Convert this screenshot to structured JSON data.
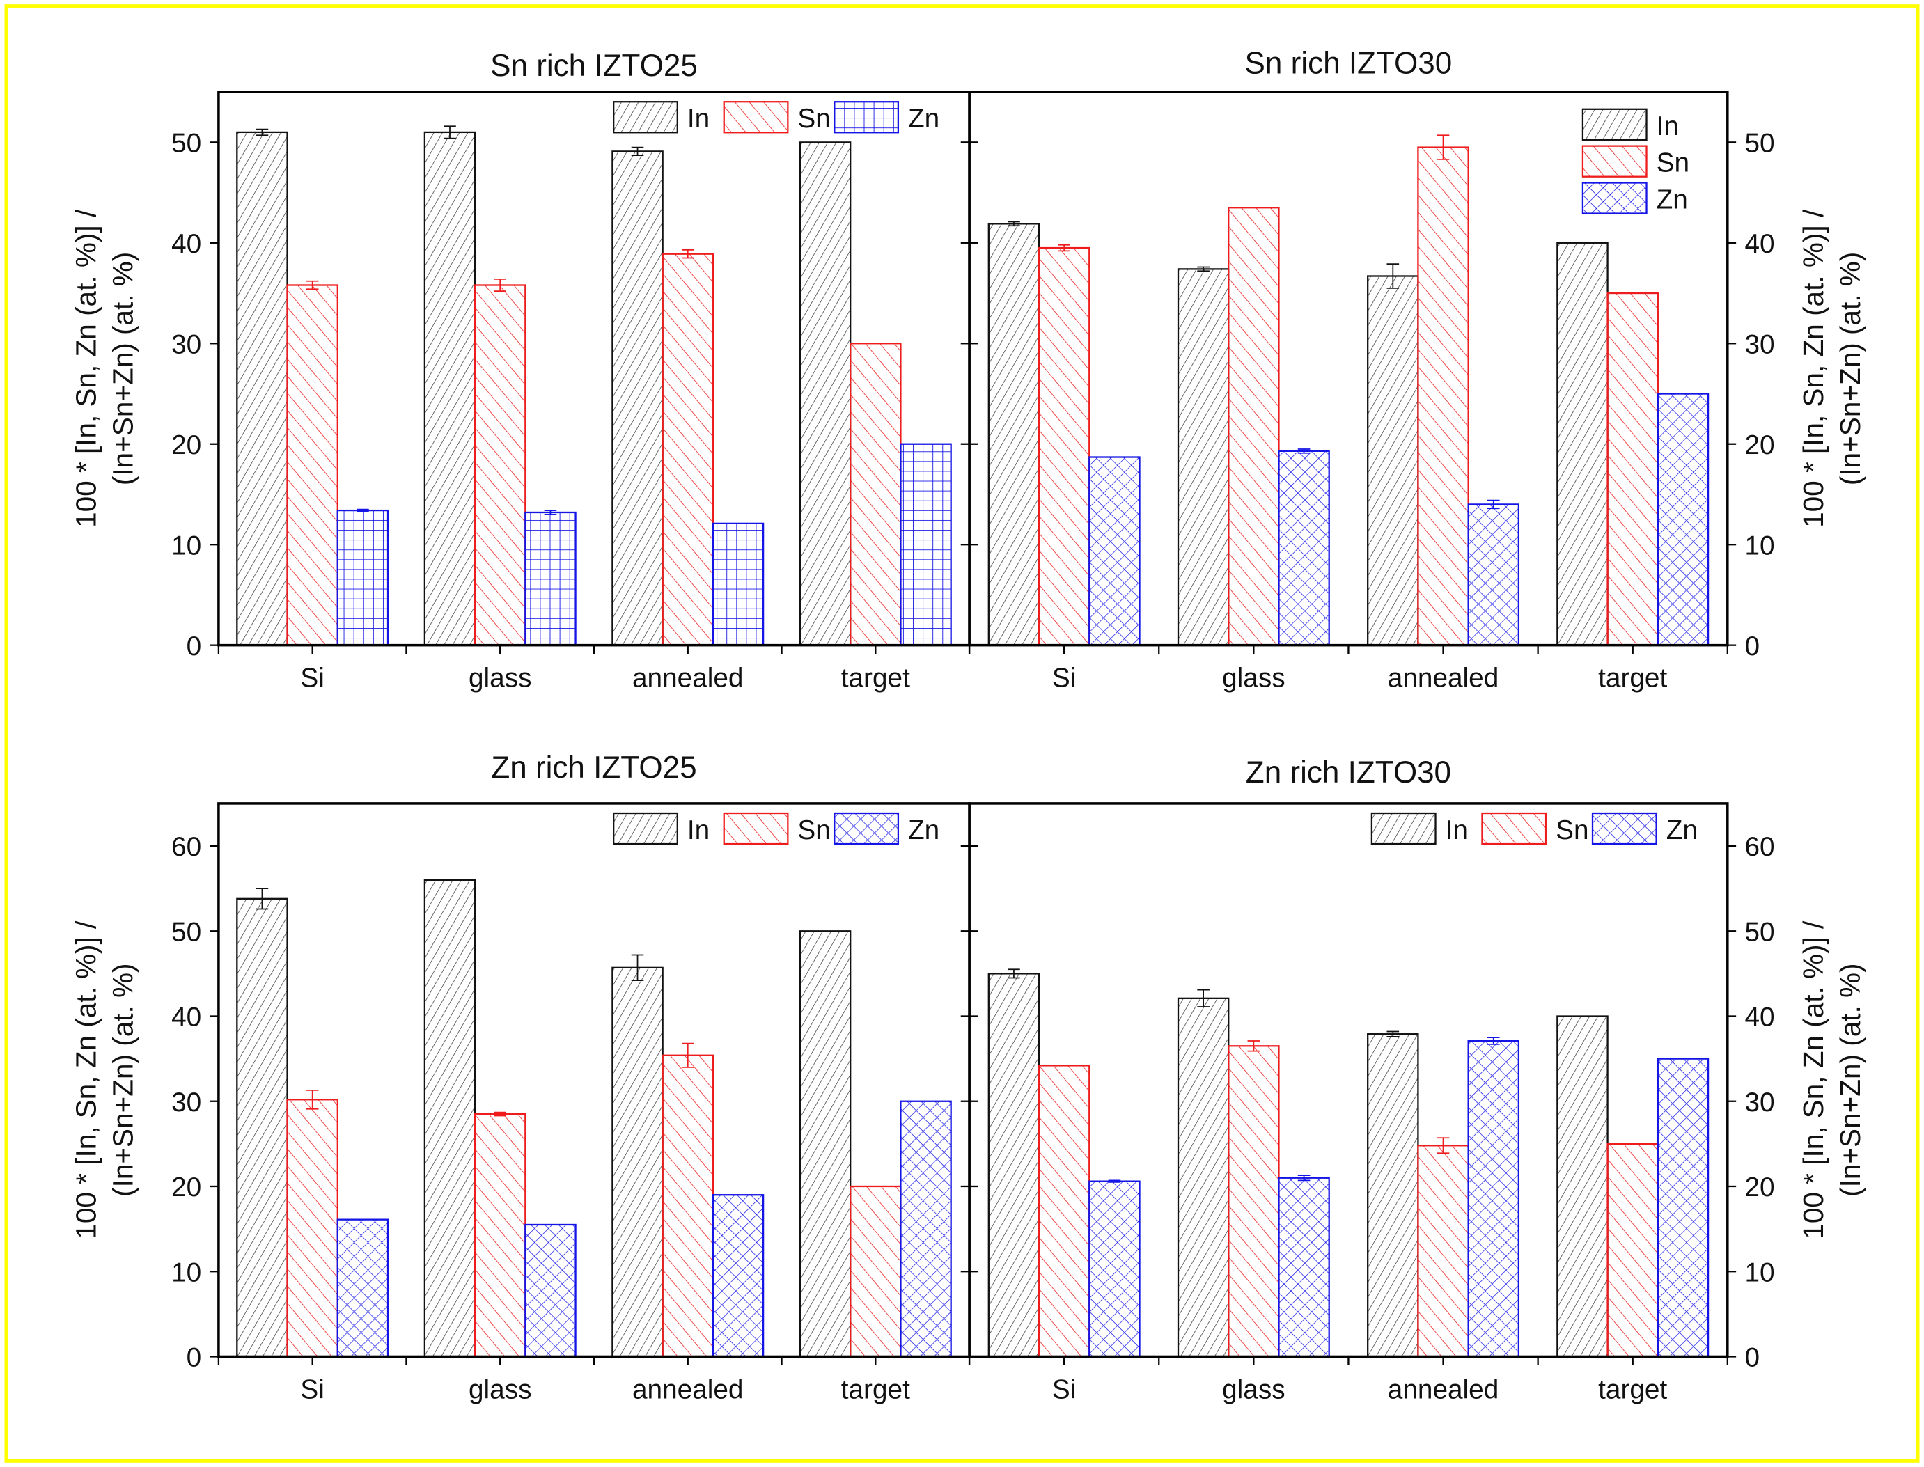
{
  "chart_data": [
    {
      "type": "bar",
      "title": "Sn rich IZTO25",
      "categories": [
        "Si",
        "glass",
        "annealed",
        "target"
      ],
      "ylabel": "100 * [In, Sn, Zn (at. %)] / (In+Sn+Zn) (at. %)",
      "ylim": [
        0,
        55
      ],
      "yticks": [
        0,
        10,
        20,
        30,
        40,
        50
      ],
      "yaxis_side": "left",
      "legend_placement": "top-right",
      "legend_layout": "row",
      "series": [
        {
          "name": "In",
          "values": [
            51.0,
            51.0,
            49.1,
            50.0
          ],
          "errors": [
            0.3,
            0.6,
            0.4,
            0
          ]
        },
        {
          "name": "Sn",
          "values": [
            35.8,
            35.8,
            38.9,
            30.0
          ],
          "errors": [
            0.4,
            0.6,
            0.4,
            0
          ]
        },
        {
          "name": "Zn",
          "values": [
            13.4,
            13.2,
            12.1,
            20.0
          ],
          "errors": [
            0.1,
            0.2,
            0,
            0
          ]
        }
      ]
    },
    {
      "type": "bar",
      "title": "Sn rich IZTO30",
      "categories": [
        "Si",
        "glass",
        "annealed",
        "target"
      ],
      "ylabel": "100 * [In, Sn, Zn (at. %)] / (In+Sn+Zn) (at. %)",
      "ylim": [
        0,
        55
      ],
      "yticks": [
        0,
        10,
        20,
        30,
        40,
        50
      ],
      "yaxis_side": "right",
      "legend_placement": "top-right",
      "legend_layout": "column",
      "series": [
        {
          "name": "In",
          "values": [
            41.9,
            37.4,
            36.7,
            40.0
          ],
          "errors": [
            0.2,
            0.2,
            1.2,
            0
          ]
        },
        {
          "name": "Sn",
          "values": [
            39.5,
            43.5,
            49.5,
            35.0
          ],
          "errors": [
            0.3,
            0,
            1.2,
            0
          ]
        },
        {
          "name": "Zn",
          "values": [
            18.7,
            19.3,
            14.0,
            25.0
          ],
          "errors": [
            0,
            0.2,
            0.4,
            0
          ]
        }
      ]
    },
    {
      "type": "bar",
      "title": "Zn rich IZTO25",
      "categories": [
        "Si",
        "glass",
        "annealed",
        "target"
      ],
      "ylabel": "100 * [In, Sn, Zn (at. %)] / (In+Sn+Zn) (at. %)",
      "ylim": [
        0,
        65
      ],
      "yticks": [
        0,
        10,
        20,
        30,
        40,
        50,
        60
      ],
      "yaxis_side": "left",
      "legend_placement": "top-right",
      "legend_layout": "row",
      "series": [
        {
          "name": "In",
          "values": [
            53.8,
            56.0,
            45.7,
            50.0
          ],
          "errors": [
            1.2,
            0,
            1.5,
            0
          ]
        },
        {
          "name": "Sn",
          "values": [
            30.2,
            28.5,
            35.4,
            20.0
          ],
          "errors": [
            1.1,
            0.2,
            1.4,
            0
          ]
        },
        {
          "name": "Zn",
          "values": [
            16.1,
            15.5,
            19.0,
            30.0
          ],
          "errors": [
            0,
            0,
            0,
            0
          ]
        }
      ]
    },
    {
      "type": "bar",
      "title": "Zn rich IZTO30",
      "categories": [
        "Si",
        "glass",
        "annealed",
        "target"
      ],
      "ylabel": "100 * [In, Sn, Zn (at. %)] / (In+Sn+Zn) (at. %)",
      "ylim": [
        0,
        65
      ],
      "yticks": [
        0,
        10,
        20,
        30,
        40,
        50,
        60
      ],
      "yaxis_side": "right",
      "legend_placement": "top-right",
      "legend_layout": "row",
      "series": [
        {
          "name": "In",
          "values": [
            45.0,
            42.1,
            37.9,
            40.0
          ],
          "errors": [
            0.5,
            1.0,
            0.3,
            0
          ]
        },
        {
          "name": "Sn",
          "values": [
            34.2,
            36.5,
            24.8,
            25.0
          ],
          "errors": [
            0,
            0.6,
            0.9,
            0
          ]
        },
        {
          "name": "Zn",
          "values": [
            20.6,
            21.0,
            37.1,
            35.0
          ],
          "errors": [
            0.1,
            0.3,
            0.4,
            0
          ]
        }
      ]
    }
  ],
  "colors": {
    "In": "#111111",
    "Sn": "#ee1c1c",
    "Zn": "#1414e6",
    "border": "#ffff00"
  }
}
